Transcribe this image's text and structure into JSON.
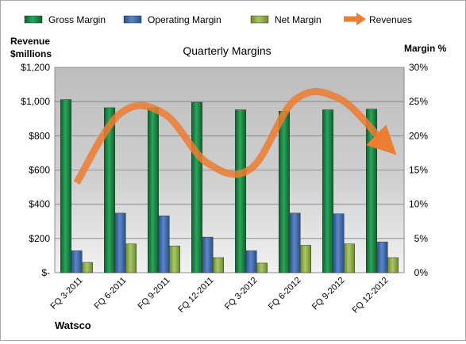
{
  "chart_data": {
    "type": "bar",
    "title": "Quarterly Margins",
    "company": "Watsco",
    "left_axis_label": [
      "Revenue",
      "$millions"
    ],
    "right_axis_label": "Margin %",
    "categories": [
      "FQ 3-2011",
      "FQ 6-2011",
      "FQ 9-2011",
      "FQ 12-2011",
      "FQ 3-2012",
      "FQ 6-2012",
      "FQ 9-2012",
      "FQ 12-2012"
    ],
    "left_axis": {
      "min": 0,
      "max": 1200,
      "step": 200,
      "ticks": [
        "$-",
        "$200",
        "$400",
        "$600",
        "$800",
        "$1,000",
        "$1,200"
      ]
    },
    "right_axis": {
      "min": 0,
      "max": 30,
      "step": 5,
      "ticks": [
        "0%",
        "5%",
        "10%",
        "15%",
        "20%",
        "25%",
        "30%"
      ]
    },
    "series": [
      {
        "name": "Gross Margin",
        "axis": "right",
        "unit": "%",
        "values": [
          25.3,
          24.1,
          24.1,
          24.9,
          23.8,
          23.6,
          23.8,
          23.9
        ],
        "color": "#1e8f4a"
      },
      {
        "name": "Operating Margin",
        "axis": "right",
        "unit": "%",
        "values": [
          3.2,
          8.7,
          8.3,
          5.2,
          3.2,
          8.7,
          8.6,
          4.5
        ],
        "color": "#3f6bb0"
      },
      {
        "name": "Net Margin",
        "axis": "right",
        "unit": "%",
        "values": [
          1.5,
          4.2,
          3.9,
          2.2,
          1.4,
          4.0,
          4.2,
          2.2
        ],
        "color": "#8fb04a"
      },
      {
        "name": "Revenues",
        "axis": "left",
        "unit": "$millions",
        "type": "smooth-line",
        "values": [
          525,
          930,
          930,
          640,
          610,
          1010,
          1020,
          770
        ],
        "color": "#ed7d31"
      }
    ],
    "legend_position": "top",
    "grid": true
  }
}
